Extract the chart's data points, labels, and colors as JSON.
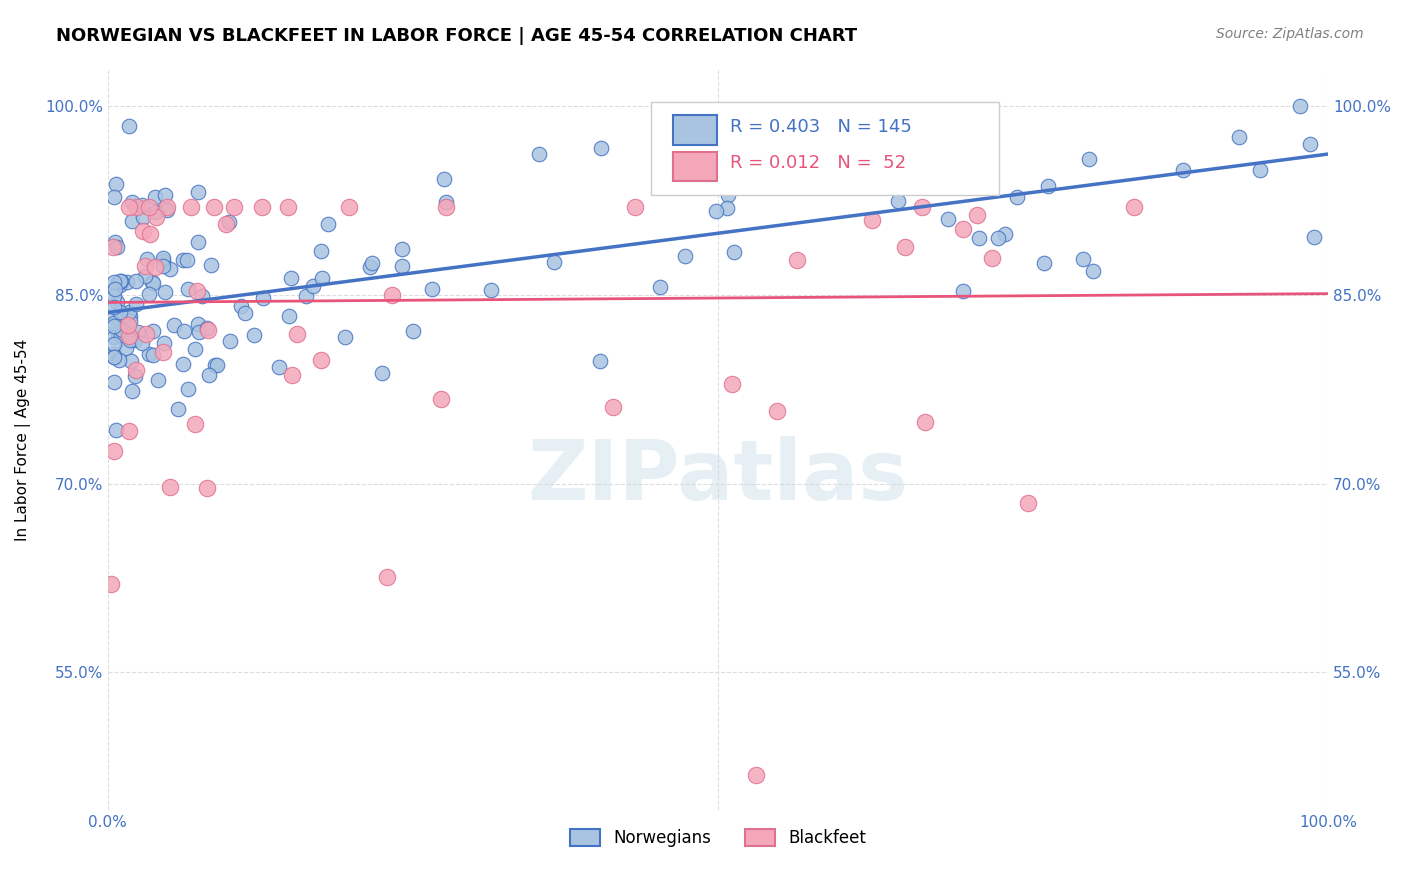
{
  "title": "NORWEGIAN VS BLACKFEET IN LABOR FORCE | AGE 45-54 CORRELATION CHART",
  "source": "Source: ZipAtlas.com",
  "ylabel": "In Labor Force | Age 45-54",
  "background_color": "#ffffff",
  "watermark_text": "ZIPatlas",
  "norwegian_face_color": "#a8c4e0",
  "norwegian_edge_color": "#4472c4",
  "blackfeet_face_color": "#f4a7b9",
  "blackfeet_edge_color": "#e07090",
  "norwegian_line_color": "#4472c4",
  "blackfeet_line_color": "#e8547a",
  "norwegian_R": 0.403,
  "norwegian_N": 145,
  "blackfeet_R": 0.012,
  "blackfeet_N": 52,
  "tick_label_color": "#4472c4",
  "title_fontsize": 13,
  "source_fontsize": 10,
  "axis_label_fontsize": 11,
  "xlim": [
    0.0,
    1.0
  ],
  "ylim": [
    0.44,
    1.03
  ],
  "yticks": [
    0.55,
    0.7,
    0.85,
    1.0
  ],
  "ytick_labels": [
    "55.0%",
    "70.0%",
    "85.0%",
    "100.0%"
  ],
  "xticks": [
    0.0,
    0.1,
    0.2,
    0.3,
    0.4,
    0.5,
    0.6,
    0.7,
    0.8,
    0.9,
    1.0
  ],
  "xtick_labels": [
    "0.0%",
    "",
    "",
    "",
    "",
    "",
    "",
    "",
    "",
    "",
    "100.0%"
  ],
  "grid_color": "#dddddd",
  "norwegian_trend_x": [
    0.0,
    1.0
  ],
  "norwegian_trend_y": [
    0.836,
    0.962
  ],
  "blackfeet_trend_x": [
    0.0,
    1.0
  ],
  "blackfeet_trend_y": [
    0.844,
    0.851
  ]
}
